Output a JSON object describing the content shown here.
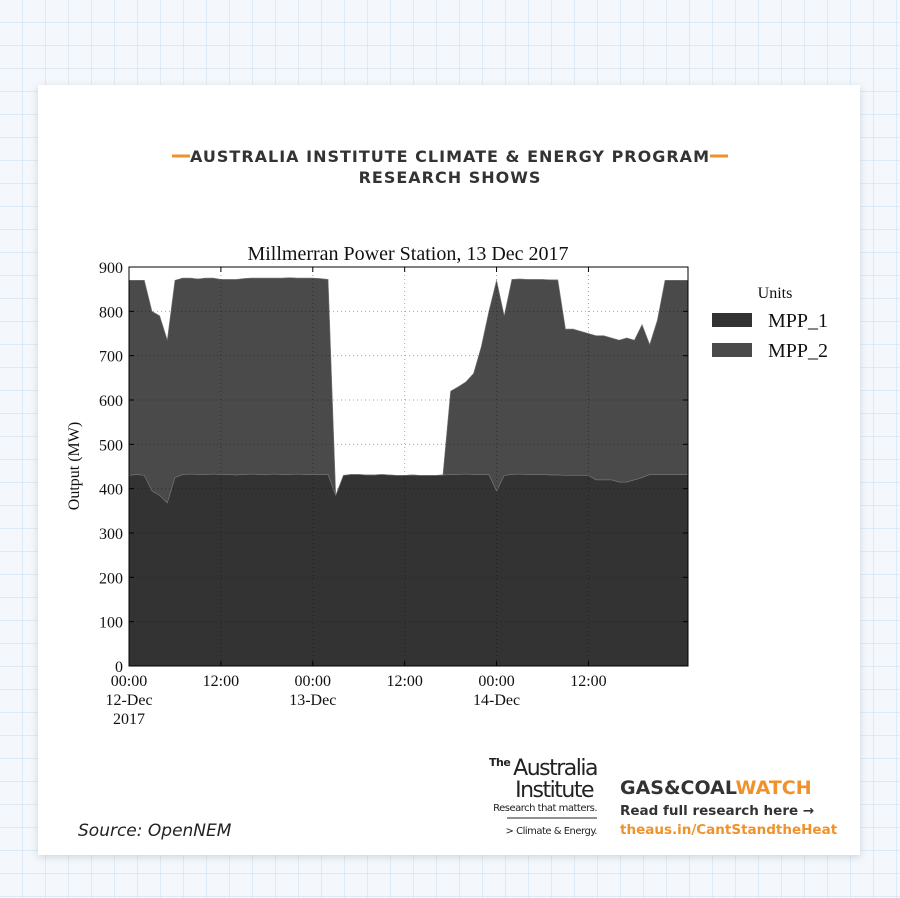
{
  "header": {
    "line1": "AUSTRALIA INSTITUTE CLIMATE & ENERGY PROGRAM",
    "line2": "RESEARCH SHOWS"
  },
  "chart_data": {
    "type": "stacked_area",
    "title": "Millmerran Power Station, 13 Dec 2017",
    "y_label": "Output (MW)",
    "legend_title": "Units",
    "legend_position": "outside-right",
    "grid": true,
    "x": [
      "2017-12-12 00:00",
      "2017-12-12 01:00",
      "2017-12-12 02:00",
      "2017-12-12 03:00",
      "2017-12-12 04:00",
      "2017-12-12 05:00",
      "2017-12-12 06:00",
      "2017-12-12 07:00",
      "2017-12-12 08:00",
      "2017-12-12 09:00",
      "2017-12-12 10:00",
      "2017-12-12 11:00",
      "2017-12-12 12:00",
      "2017-12-12 13:00",
      "2017-12-12 14:00",
      "2017-12-12 15:00",
      "2017-12-12 16:00",
      "2017-12-12 17:00",
      "2017-12-12 18:00",
      "2017-12-12 19:00",
      "2017-12-12 20:00",
      "2017-12-12 21:00",
      "2017-12-12 22:00",
      "2017-12-12 23:00",
      "2017-12-13 00:00",
      "2017-12-13 01:00",
      "2017-12-13 02:00",
      "2017-12-13 03:00",
      "2017-12-13 04:00",
      "2017-12-13 05:00",
      "2017-12-13 06:00",
      "2017-12-13 07:00",
      "2017-12-13 08:00",
      "2017-12-13 09:00",
      "2017-12-13 10:00",
      "2017-12-13 11:00",
      "2017-12-13 12:00",
      "2017-12-13 13:00",
      "2017-12-13 14:00",
      "2017-12-13 15:00",
      "2017-12-13 16:00",
      "2017-12-13 17:00",
      "2017-12-13 18:00",
      "2017-12-13 19:00",
      "2017-12-13 20:00",
      "2017-12-13 21:00",
      "2017-12-13 22:00",
      "2017-12-13 23:00",
      "2017-12-14 00:00",
      "2017-12-14 01:00",
      "2017-12-14 02:00",
      "2017-12-14 03:00",
      "2017-12-14 04:00",
      "2017-12-14 05:00",
      "2017-12-14 06:00",
      "2017-12-14 07:00",
      "2017-12-14 08:00",
      "2017-12-14 09:00",
      "2017-12-14 10:00",
      "2017-12-14 11:00",
      "2017-12-14 12:00",
      "2017-12-14 13:00",
      "2017-12-14 14:00",
      "2017-12-14 15:00",
      "2017-12-14 16:00",
      "2017-12-14 17:00",
      "2017-12-14 18:00",
      "2017-12-14 19:00",
      "2017-12-14 20:00",
      "2017-12-14 21:00",
      "2017-12-14 22:00",
      "2017-12-14 23:00",
      "2017-12-15 00:00",
      "2017-12-15 01:00"
    ],
    "series": [
      {
        "name": "MPP_1",
        "color": "#333333",
        "values": [
          430,
          432,
          430,
          395,
          385,
          368,
          425,
          432,
          433,
          432,
          432,
          433,
          432,
          432,
          431,
          432,
          433,
          432,
          432,
          433,
          432,
          432,
          433,
          432,
          432,
          432,
          432,
          385,
          430,
          432,
          432,
          431,
          431,
          432,
          431,
          430,
          430,
          431,
          430,
          430,
          430,
          431,
          432,
          432,
          433,
          432,
          432,
          432,
          395,
          430,
          432,
          433,
          432,
          432,
          432,
          431,
          431,
          430,
          430,
          430,
          430,
          420,
          420,
          420,
          415,
          415,
          420,
          425,
          432,
          432,
          432,
          432,
          432,
          432
        ]
      },
      {
        "name": "MPP_2",
        "color": "#4a4a4a",
        "values": [
          440,
          438,
          440,
          405,
          405,
          367,
          445,
          443,
          442,
          441,
          443,
          442,
          440,
          440,
          441,
          442,
          442,
          443,
          443,
          442,
          443,
          444,
          442,
          443,
          443,
          442,
          440,
          0,
          0,
          0,
          0,
          0,
          0,
          0,
          0,
          0,
          0,
          0,
          0,
          0,
          0,
          0,
          188,
          198,
          208,
          228,
          288,
          368,
          475,
          360,
          440,
          440,
          440,
          440,
          440,
          440,
          440,
          330,
          330,
          325,
          320,
          325,
          325,
          320,
          320,
          325,
          315,
          345,
          293,
          348,
          438,
          438,
          438,
          438
        ]
      }
    ],
    "xlim": [
      "2017-12-12 00:00",
      "2017-12-15 01:00"
    ],
    "xticks": [
      {
        "value": "2017-12-12 00:00",
        "label": "00:00\n12-Dec\n2017"
      },
      {
        "value": "2017-12-12 12:00",
        "label": "12:00"
      },
      {
        "value": "2017-12-13 00:00",
        "label": "00:00\n13-Dec"
      },
      {
        "value": "2017-12-13 12:00",
        "label": "12:00"
      },
      {
        "value": "2017-12-14 00:00",
        "label": "00:00\n14-Dec"
      },
      {
        "value": "2017-12-14 12:00",
        "label": "12:00"
      }
    ],
    "ylim": [
      0,
      900
    ],
    "yticks": [
      0,
      100,
      200,
      300,
      400,
      500,
      600,
      700,
      800,
      900
    ]
  },
  "footer": {
    "source": "Source: OpenNEM",
    "logo_the": "The",
    "logo_line1": "Australia",
    "logo_line2": "Institute",
    "logo_tagline": "Research that matters.",
    "logo_program": "> Climate & Energy.",
    "brand_part1": "GAS&COAL",
    "brand_part2": "WATCH",
    "cta": "Read full research here →",
    "link": "theaus.in/CantStandtheHeat"
  }
}
